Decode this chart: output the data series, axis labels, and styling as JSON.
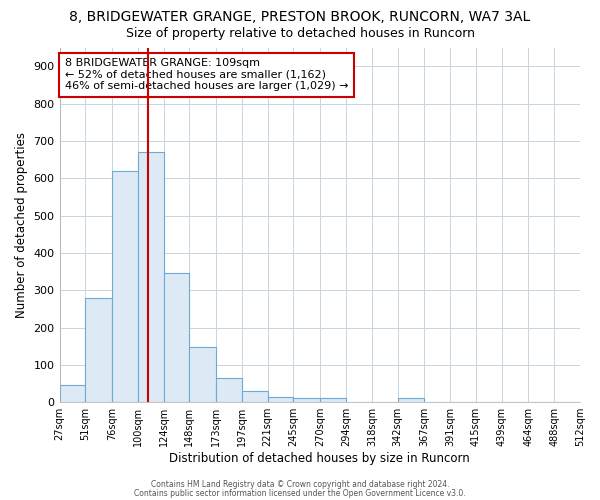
{
  "title": "8, BRIDGEWATER GRANGE, PRESTON BROOK, RUNCORN, WA7 3AL",
  "subtitle": "Size of property relative to detached houses in Runcorn",
  "xlabel": "Distribution of detached houses by size in Runcorn",
  "ylabel": "Number of detached properties",
  "bin_labels": [
    "27sqm",
    "51sqm",
    "76sqm",
    "100sqm",
    "124sqm",
    "148sqm",
    "173sqm",
    "197sqm",
    "221sqm",
    "245sqm",
    "270sqm",
    "294sqm",
    "318sqm",
    "342sqm",
    "367sqm",
    "391sqm",
    "415sqm",
    "439sqm",
    "464sqm",
    "488sqm",
    "512sqm"
  ],
  "bar_heights": [
    45,
    280,
    620,
    670,
    345,
    148,
    65,
    30,
    15,
    10,
    10,
    0,
    0,
    10,
    0,
    0,
    0,
    0,
    0,
    0
  ],
  "bar_color": "#ddeaf5",
  "bar_edge_color": "#6aaad4",
  "vline_x": 109,
  "vline_color": "#cc0000",
  "ylim": [
    0,
    950
  ],
  "yticks": [
    0,
    100,
    200,
    300,
    400,
    500,
    600,
    700,
    800,
    900
  ],
  "annotation_text": "8 BRIDGEWATER GRANGE: 109sqm\n← 52% of detached houses are smaller (1,162)\n46% of semi-detached houses are larger (1,029) →",
  "annotation_box_color": "white",
  "annotation_box_edge_color": "#cc0000",
  "footer_line1": "Contains HM Land Registry data © Crown copyright and database right 2024.",
  "footer_line2": "Contains public sector information licensed under the Open Government Licence v3.0.",
  "bin_edges": [
    27,
    51,
    76,
    100,
    124,
    148,
    173,
    197,
    221,
    245,
    270,
    294,
    318,
    342,
    367,
    391,
    415,
    439,
    464,
    488,
    512
  ],
  "grid_color": "#c8d4e0",
  "background_color": "#ffffff",
  "title_fontsize": 10,
  "subtitle_fontsize": 9
}
